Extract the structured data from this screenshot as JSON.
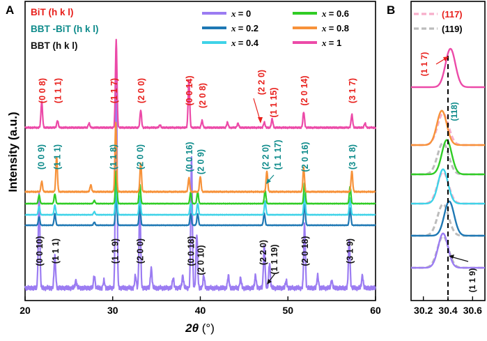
{
  "chart_data": [
    {
      "type": "line",
      "panel_label": "A",
      "xlabel_main": "2θ",
      "xlabel_unit": " (°)",
      "ylabel": "Intensity (a.u.)",
      "xlim": [
        20,
        60
      ],
      "xticks": [
        20,
        30,
        40,
        50,
        60
      ],
      "legend": {
        "placement": "top",
        "x_label": "x",
        "entries": [
          {
            "label": "= 0",
            "color": "#9b7cf2"
          },
          {
            "label": "= 0.2",
            "color": "#1e78b4"
          },
          {
            "label": "= 0.4",
            "color": "#3fd3e8"
          },
          {
            "label": "= 0.6",
            "color": "#30cc25"
          },
          {
            "label": "= 0.8",
            "color": "#f7923a"
          },
          {
            "label": "= 1",
            "color": "#ec4aa8"
          }
        ]
      },
      "phase_labels": [
        {
          "text": "BiT (h k l)",
          "color": "#e8201c"
        },
        {
          "text": "BBT -BiT (h k l)",
          "color": "#0e8b8b"
        },
        {
          "text": "BBT (h k l)",
          "color": "#111111"
        }
      ],
      "series": [
        {
          "name": "x = 0",
          "color": "#9b7cf2",
          "baseline": 0.0,
          "peaks": [
            [
              21.6,
              0.38
            ],
            [
              23.4,
              0.13
            ],
            [
              25.8,
              0.03
            ],
            [
              27.9,
              0.05
            ],
            [
              29.0,
              0.03
            ],
            [
              30.4,
              1.0
            ],
            [
              32.6,
              0.05
            ],
            [
              33.1,
              0.35
            ],
            [
              34.4,
              0.08
            ],
            [
              36.9,
              0.04
            ],
            [
              38.0,
              0.05
            ],
            [
              39.0,
              0.52
            ],
            [
              39.6,
              0.22
            ],
            [
              40.4,
              0.05
            ],
            [
              43.2,
              0.05
            ],
            [
              44.6,
              0.04
            ],
            [
              46.3,
              0.05
            ],
            [
              47.3,
              0.17
            ],
            [
              47.9,
              0.1
            ],
            [
              49.8,
              0.03
            ],
            [
              51.9,
              0.26
            ],
            [
              53.4,
              0.05
            ],
            [
              55.0,
              0.03
            ],
            [
              57.0,
              0.2
            ],
            [
              58.5,
              0.05
            ]
          ],
          "annotations": [
            {
              "text": "(0 0 10)",
              "x": 21.6,
              "color": "#111111"
            },
            {
              "text": "(1 1 1)",
              "x": 23.4,
              "color": "#111111"
            },
            {
              "text": "(1 1 9)",
              "x": 30.2,
              "color": "#111111"
            },
            {
              "text": "(2 0 0)",
              "x": 33.1,
              "color": "#111111"
            },
            {
              "text": "(0 0 18)",
              "x": 38.9,
              "color": "#111111"
            },
            {
              "text": "(2 0 10)",
              "x": 40.0,
              "color": "#111111"
            },
            {
              "text": "(2 2 0)",
              "x": 47.1,
              "color": "#111111"
            },
            {
              "text": "(1 1 19)",
              "x": 48.4,
              "color": "#111111"
            },
            {
              "text": "(2 0 18)",
              "x": 51.9,
              "color": "#111111"
            },
            {
              "text": "(3 1 9)",
              "x": 57.0,
              "color": "#111111"
            }
          ]
        },
        {
          "name": "x = 0.2",
          "color": "#1e78b4",
          "baseline": 0.0,
          "peaks": [
            [
              21.6,
              0.22
            ],
            [
              23.4,
              0.3
            ],
            [
              27.9,
              0.08
            ],
            [
              30.4,
              0.75
            ],
            [
              33.1,
              0.5
            ],
            [
              38.9,
              0.3
            ],
            [
              39.7,
              0.3
            ],
            [
              47.3,
              0.32
            ],
            [
              51.9,
              0.55
            ],
            [
              57.1,
              0.45
            ]
          ],
          "annotations": []
        },
        {
          "name": "x = 0.4",
          "color": "#3fd3e8",
          "baseline": 0.0,
          "peaks": [
            [
              21.6,
              0.22
            ],
            [
              23.4,
              0.25
            ],
            [
              27.9,
              0.08
            ],
            [
              30.4,
              0.8
            ],
            [
              33.1,
              0.5
            ],
            [
              38.9,
              0.3
            ],
            [
              39.7,
              0.3
            ],
            [
              47.4,
              0.35
            ],
            [
              51.9,
              0.55
            ],
            [
              57.1,
              0.45
            ]
          ],
          "annotations": []
        },
        {
          "name": "x = 0.6",
          "color": "#30cc25",
          "baseline": 0.0,
          "peaks": [
            [
              21.6,
              0.22
            ],
            [
              23.4,
              0.25
            ],
            [
              27.9,
              0.08
            ],
            [
              30.4,
              0.85
            ],
            [
              33.1,
              0.5
            ],
            [
              38.9,
              0.3
            ],
            [
              39.7,
              0.3
            ],
            [
              47.4,
              0.35
            ],
            [
              51.9,
              0.55
            ],
            [
              57.1,
              0.45
            ]
          ],
          "annotations": []
        },
        {
          "name": "x = 0.8",
          "color": "#f7923a",
          "baseline": 0.0,
          "peaks": [
            [
              21.9,
              0.15
            ],
            [
              23.6,
              0.5
            ],
            [
              27.5,
              0.1
            ],
            [
              30.35,
              1.0
            ],
            [
              33.2,
              0.42
            ],
            [
              38.7,
              0.2
            ],
            [
              40.0,
              0.22
            ],
            [
              47.6,
              0.3
            ],
            [
              51.8,
              0.35
            ],
            [
              57.3,
              0.3
            ]
          ],
          "annotations": [
            {
              "text": "(0 0 9)",
              "x": 21.8,
              "color": "#0e8b8b"
            },
            {
              "text": "(1 1 1)",
              "x": 23.6,
              "color": "#0e8b8b"
            },
            {
              "text": "(1 1 8)",
              "x": 30.0,
              "color": "#0e8b8b"
            },
            {
              "text": "(2 0 0)",
              "x": 33.1,
              "color": "#0e8b8b"
            },
            {
              "text": "(0 0 16)",
              "x": 38.7,
              "color": "#0e8b8b"
            },
            {
              "text": "(2 0 9)",
              "x": 40.0,
              "color": "#0e8b8b"
            },
            {
              "text": "(2 2 0)",
              "x": 47.4,
              "color": "#0e8b8b"
            },
            {
              "text": "(1 1 17)",
              "x": 48.8,
              "color": "#0e8b8b"
            },
            {
              "text": "(2 0 16)",
              "x": 51.9,
              "color": "#0e8b8b"
            },
            {
              "text": "(3 1 8)",
              "x": 57.3,
              "color": "#0e8b8b"
            }
          ]
        },
        {
          "name": "x = 1",
          "color": "#ec4aa8",
          "baseline": 0.0,
          "peaks": [
            [
              21.9,
              0.3
            ],
            [
              23.7,
              0.08
            ],
            [
              27.3,
              0.05
            ],
            [
              30.4,
              1.0
            ],
            [
              33.2,
              0.2
            ],
            [
              35.4,
              0.03
            ],
            [
              38.7,
              0.55
            ],
            [
              40.2,
              0.08
            ],
            [
              43.1,
              0.06
            ],
            [
              44.3,
              0.05
            ],
            [
              47.3,
              0.06
            ],
            [
              48.2,
              0.1
            ],
            [
              51.8,
              0.18
            ],
            [
              57.3,
              0.15
            ],
            [
              58.8,
              0.05
            ]
          ],
          "annotations": [
            {
              "text": "(0 0 8)",
              "x": 21.9,
              "color": "#e8201c"
            },
            {
              "text": "(1 1 1)",
              "x": 23.7,
              "color": "#e8201c"
            },
            {
              "text": "(1 1 7)",
              "x": 30.1,
              "color": "#e8201c"
            },
            {
              "text": "(2 0 0)",
              "x": 33.2,
              "color": "#e8201c"
            },
            {
              "text": "(0 0 14)",
              "x": 38.7,
              "color": "#e8201c"
            },
            {
              "text": "(2 0 8)",
              "x": 40.2,
              "color": "#e8201c"
            },
            {
              "text": "(2 2 0)",
              "x": 46.9,
              "color": "#e8201c"
            },
            {
              "text": "(1 1 15)",
              "x": 48.3,
              "color": "#e8201c"
            },
            {
              "text": "(2 0 14)",
              "x": 51.8,
              "color": "#e8201c"
            },
            {
              "text": "(3 1 7)",
              "x": 57.3,
              "color": "#e8201c"
            }
          ]
        }
      ]
    },
    {
      "type": "line",
      "panel_label": "B",
      "xlim": [
        30.1,
        30.7
      ],
      "xticks": [
        30.2,
        30.4,
        30.6
      ],
      "reference_x": 30.4,
      "legend": {
        "placement": "top",
        "entries": [
          {
            "label": "(117)",
            "color": "#f7aec9"
          },
          {
            "label": "(119)",
            "color": "#bcbcbc"
          }
        ]
      },
      "series": [
        {
          "name": "x = 1",
          "color": "#ec4aa8",
          "center": 30.42,
          "width": 0.04
        },
        {
          "name": "x = 0.8",
          "color": "#f7923a",
          "center": 30.35,
          "width": 0.04
        },
        {
          "name": "x = 0.6",
          "color": "#30cc25",
          "center": 30.39,
          "width": 0.04
        },
        {
          "name": "x = 0.4",
          "color": "#3fd3e8",
          "center": 30.36,
          "width": 0.04
        },
        {
          "name": "x = 0.2",
          "color": "#1e78b4",
          "center": 30.41,
          "width": 0.04
        },
        {
          "name": "x = 0",
          "color": "#9b7cf2",
          "center": 30.36,
          "width": 0.04
        }
      ],
      "annotations": [
        {
          "text": "(1 1 7)",
          "color": "#e8201c"
        },
        {
          "text": "(118)",
          "color": "#0e8b8b"
        },
        {
          "text": "(1 1 9)",
          "color": "#111111"
        }
      ]
    }
  ]
}
